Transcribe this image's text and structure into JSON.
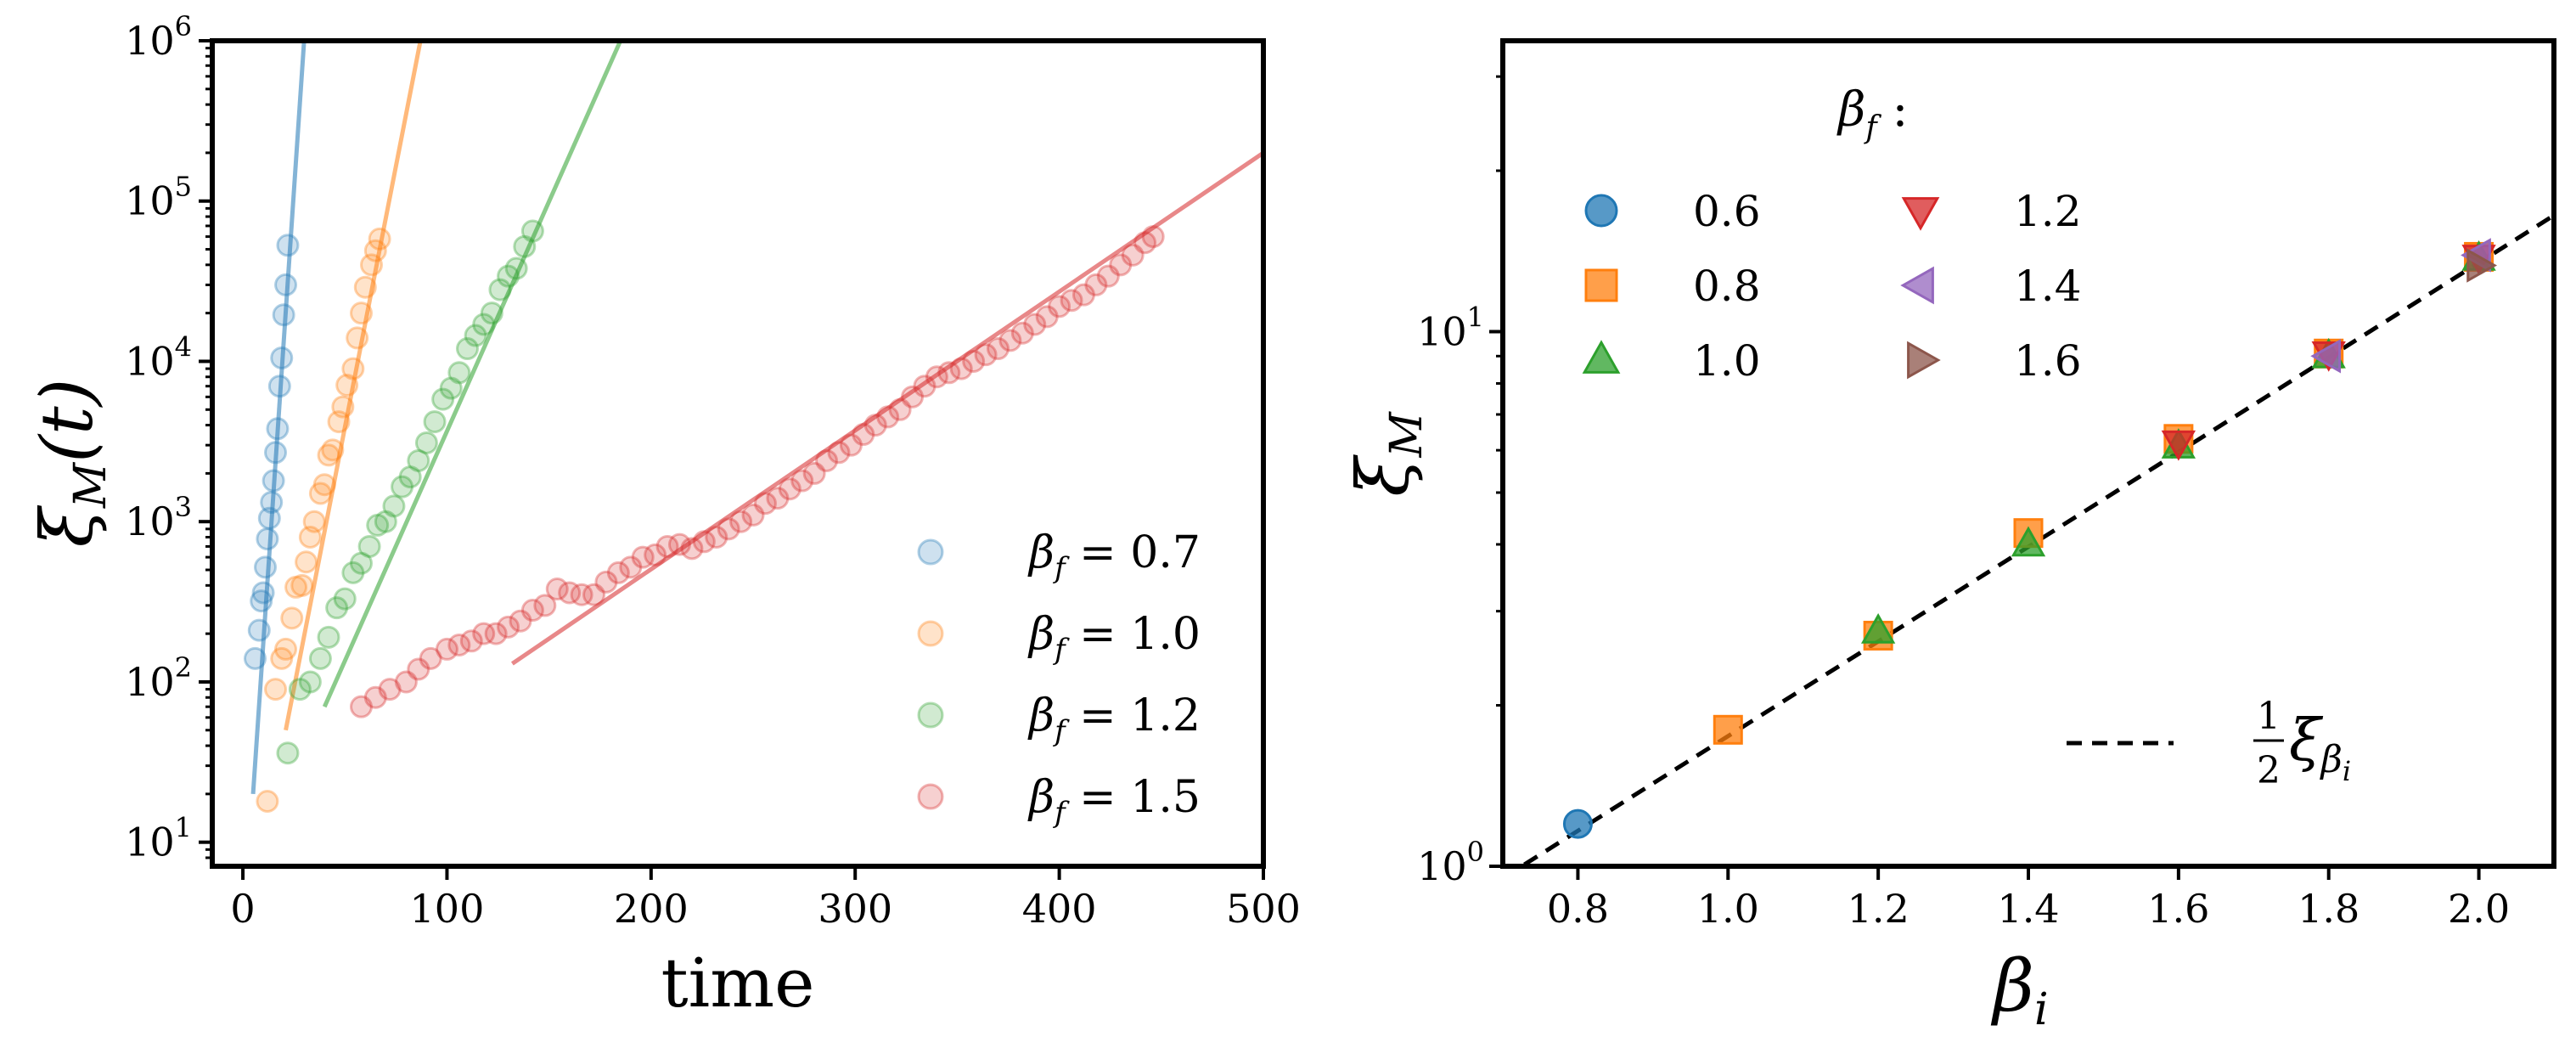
{
  "chart_data": [
    {
      "type": "scatter",
      "panel": "left",
      "xlabel": "time",
      "ylabel": "ξ_M(t)",
      "ylabel_parts": {
        "base": "ξ",
        "sub": "M",
        "arg": "(t)"
      },
      "xlim": [
        -15,
        500
      ],
      "ylim_log10": [
        0.85,
        6
      ],
      "x_ticks": [
        0,
        100,
        200,
        300,
        400,
        500
      ],
      "x_tick_labels": [
        "0",
        "100",
        "200",
        "300",
        "400",
        "500"
      ],
      "y_ticks_log10": [
        1,
        2,
        3,
        4,
        5,
        6
      ],
      "y_tick_base": "10",
      "y_tick_exps": [
        "1",
        "2",
        "3",
        "4",
        "5",
        "6"
      ],
      "legend": {
        "position": "lower-right"
      },
      "series": [
        {
          "name": "β_f = 0.7",
          "label_sym": "β",
          "label_sub": "f",
          "label_val": " = 0.7",
          "color": "#1f77b4",
          "x": [
            6,
            8,
            9,
            10,
            11,
            12,
            13,
            14,
            15,
            16,
            17,
            18,
            19,
            20,
            21,
            22
          ],
          "y": [
            140,
            210,
            320,
            360,
            520,
            780,
            1050,
            1320,
            1800,
            2700,
            3800,
            7000,
            10500,
            19500,
            30000,
            53000
          ],
          "fit": {
            "x": [
              5,
              30
            ],
            "y": [
              20,
              1000000
            ]
          }
        },
        {
          "name": "β_f = 1.0",
          "label_sym": "β",
          "label_sub": "f",
          "label_val": " = 1.0",
          "color": "#ff7f0e",
          "x": [
            12,
            16,
            19,
            21,
            24,
            26,
            29,
            31,
            33,
            35,
            38,
            40,
            42,
            44,
            47,
            49,
            51,
            54,
            56,
            58,
            60,
            63,
            65,
            67
          ],
          "y": [
            18,
            90,
            140,
            160,
            250,
            390,
            400,
            560,
            800,
            1000,
            1500,
            1700,
            2600,
            2800,
            4200,
            5200,
            7100,
            9000,
            14000,
            20000,
            29000,
            40000,
            49000,
            58000
          ],
          "fit": {
            "x": [
              21,
              87
            ],
            "y": [
              50,
              1000000
            ]
          }
        },
        {
          "name": "β_f = 1.2",
          "label_sym": "β",
          "label_sub": "f",
          "label_val": " = 1.2",
          "color": "#2ca02c",
          "x": [
            22,
            28,
            33,
            38,
            42,
            46,
            50,
            54,
            58,
            62,
            66,
            70,
            74,
            78,
            82,
            86,
            90,
            94,
            98,
            102,
            106,
            110,
            114,
            118,
            122,
            126,
            130,
            134,
            138,
            142
          ],
          "y": [
            36,
            90,
            100,
            140,
            190,
            290,
            330,
            480,
            550,
            700,
            950,
            1000,
            1250,
            1650,
            1900,
            2400,
            3100,
            4200,
            5800,
            6800,
            8500,
            12000,
            14500,
            17000,
            20000,
            28000,
            34000,
            38000,
            52000,
            65000
          ],
          "fit": {
            "x": [
              40,
              185
            ],
            "y": [
              70,
              1000000
            ]
          }
        },
        {
          "name": "β_f = 1.5",
          "label_sym": "β",
          "label_sub": "f",
          "label_val": " = 1.5",
          "color": "#d62728",
          "x": [
            58,
            65,
            72,
            80,
            86,
            92,
            100,
            106,
            112,
            118,
            124,
            130,
            136,
            142,
            148,
            154,
            160,
            166,
            172,
            178,
            184,
            190,
            196,
            202,
            208,
            214,
            220,
            226,
            232,
            238,
            244,
            250,
            256,
            262,
            268,
            274,
            280,
            286,
            292,
            298,
            304,
            310,
            316,
            322,
            328,
            334,
            340,
            346,
            352,
            358,
            364,
            370,
            376,
            382,
            388,
            394,
            400,
            406,
            412,
            418,
            424,
            430,
            436,
            442,
            446
          ],
          "y": [
            70,
            80,
            90,
            100,
            120,
            140,
            160,
            170,
            180,
            200,
            200,
            220,
            240,
            280,
            300,
            380,
            360,
            350,
            350,
            420,
            480,
            520,
            600,
            620,
            700,
            720,
            680,
            750,
            800,
            900,
            1000,
            1100,
            1300,
            1400,
            1600,
            1800,
            2000,
            2400,
            2700,
            3000,
            3500,
            4000,
            4500,
            5000,
            6000,
            7000,
            8000,
            8500,
            9000,
            10000,
            11000,
            12000,
            13500,
            15000,
            17000,
            19000,
            22000,
            24000,
            26000,
            30000,
            34000,
            40000,
            46000,
            55000,
            60000
          ],
          "fit": {
            "x": [
              132,
              500
            ],
            "y": [
              130,
              200000
            ]
          }
        }
      ]
    },
    {
      "type": "scatter",
      "panel": "right",
      "xlabel": "β_i",
      "xlabel_parts": {
        "base": "β",
        "sub": "i"
      },
      "ylabel": "ξ_M",
      "ylabel_parts": {
        "base": "ξ",
        "sub": "M"
      },
      "xlim": [
        0.7,
        2.1
      ],
      "ylim": [
        1,
        35
      ],
      "x_ticks": [
        0.8,
        1.0,
        1.2,
        1.4,
        1.6,
        1.8,
        2.0
      ],
      "x_tick_labels": [
        "0.8",
        "1.0",
        "1.2",
        "1.4",
        "1.6",
        "1.8",
        "2.0"
      ],
      "y_ticks": [
        1,
        10
      ],
      "y_tick_base": "10",
      "y_tick_exps": [
        "0",
        "1"
      ],
      "legend_title_sym": "β",
      "legend_title_sub": "f",
      "legend_title_colon": " :",
      "reference_line": {
        "label": "½ξ_βi",
        "num": "1",
        "den": "2",
        "sym": "ξ",
        "sub": "β",
        "subsub": "i",
        "x": [
          0.7,
          2.1
        ],
        "y": [
          0.95,
          16.5
        ]
      },
      "series": [
        {
          "name": "0.6",
          "marker": "circle",
          "color": "#1f77b4",
          "x": [
            0.8
          ],
          "y": [
            1.2
          ]
        },
        {
          "name": "0.8",
          "marker": "square",
          "color": "#ff7f0e",
          "x": [
            1.0,
            1.2,
            1.4,
            1.6,
            1.8,
            2.0
          ],
          "y": [
            1.8,
            2.7,
            4.2,
            6.3,
            9.1,
            13.8
          ]
        },
        {
          "name": "1.0",
          "marker": "triangle-up",
          "color": "#2ca02c",
          "x": [
            1.2,
            1.4,
            1.6,
            1.8,
            2.0
          ],
          "y": [
            2.75,
            4.0,
            6.1,
            9.0,
            13.7
          ]
        },
        {
          "name": "1.2",
          "marker": "triangle-down",
          "color": "#d62728",
          "x": [
            1.6,
            1.8,
            2.0
          ],
          "y": [
            6.2,
            9.1,
            13.8
          ]
        },
        {
          "name": "1.4",
          "marker": "triangle-left",
          "color": "#9467bd",
          "x": [
            1.8,
            2.0
          ],
          "y": [
            9.0,
            13.9
          ]
        },
        {
          "name": "1.6",
          "marker": "triangle-right",
          "color": "#8c564b",
          "x": [
            2.0
          ],
          "y": [
            13.3
          ]
        }
      ]
    }
  ]
}
